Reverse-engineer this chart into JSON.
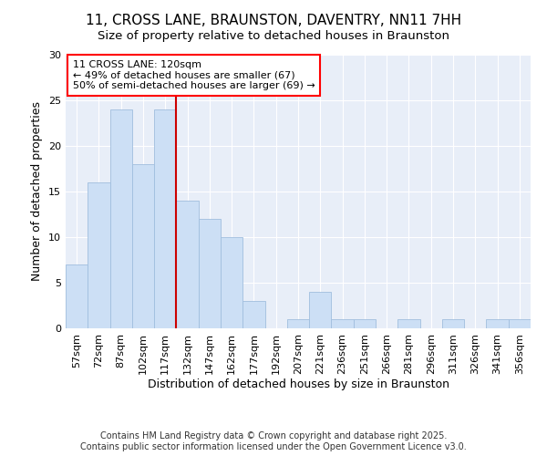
{
  "title_line1": "11, CROSS LANE, BRAUNSTON, DAVENTRY, NN11 7HH",
  "title_line2": "Size of property relative to detached houses in Braunston",
  "xlabel": "Distribution of detached houses by size in Braunston",
  "ylabel": "Number of detached properties",
  "categories": [
    "57sqm",
    "72sqm",
    "87sqm",
    "102sqm",
    "117sqm",
    "132sqm",
    "147sqm",
    "162sqm",
    "177sqm",
    "192sqm",
    "207sqm",
    "221sqm",
    "236sqm",
    "251sqm",
    "266sqm",
    "281sqm",
    "296sqm",
    "311sqm",
    "326sqm",
    "341sqm",
    "356sqm"
  ],
  "values": [
    7,
    16,
    24,
    18,
    24,
    14,
    12,
    10,
    3,
    0,
    1,
    4,
    1,
    1,
    0,
    1,
    0,
    1,
    0,
    1,
    1
  ],
  "bar_color": "#ccdff5",
  "bar_edge_color": "#a0bede",
  "bar_edge_width": 0.6,
  "vline_x": 4.5,
  "vline_color": "#cc0000",
  "annotation_text": "11 CROSS LANE: 120sqm\n← 49% of detached houses are smaller (67)\n50% of semi-detached houses are larger (69) →",
  "ylim": [
    0,
    30
  ],
  "yticks": [
    0,
    5,
    10,
    15,
    20,
    25,
    30
  ],
  "fig_bg_color": "#ffffff",
  "plot_bg_color": "#e8eef8",
  "grid_color": "#ffffff",
  "footer_line1": "Contains HM Land Registry data © Crown copyright and database right 2025.",
  "footer_line2": "Contains public sector information licensed under the Open Government Licence v3.0.",
  "title_fontsize": 11,
  "subtitle_fontsize": 9.5,
  "axis_label_fontsize": 9,
  "tick_fontsize": 8,
  "annotation_fontsize": 8,
  "footer_fontsize": 7
}
